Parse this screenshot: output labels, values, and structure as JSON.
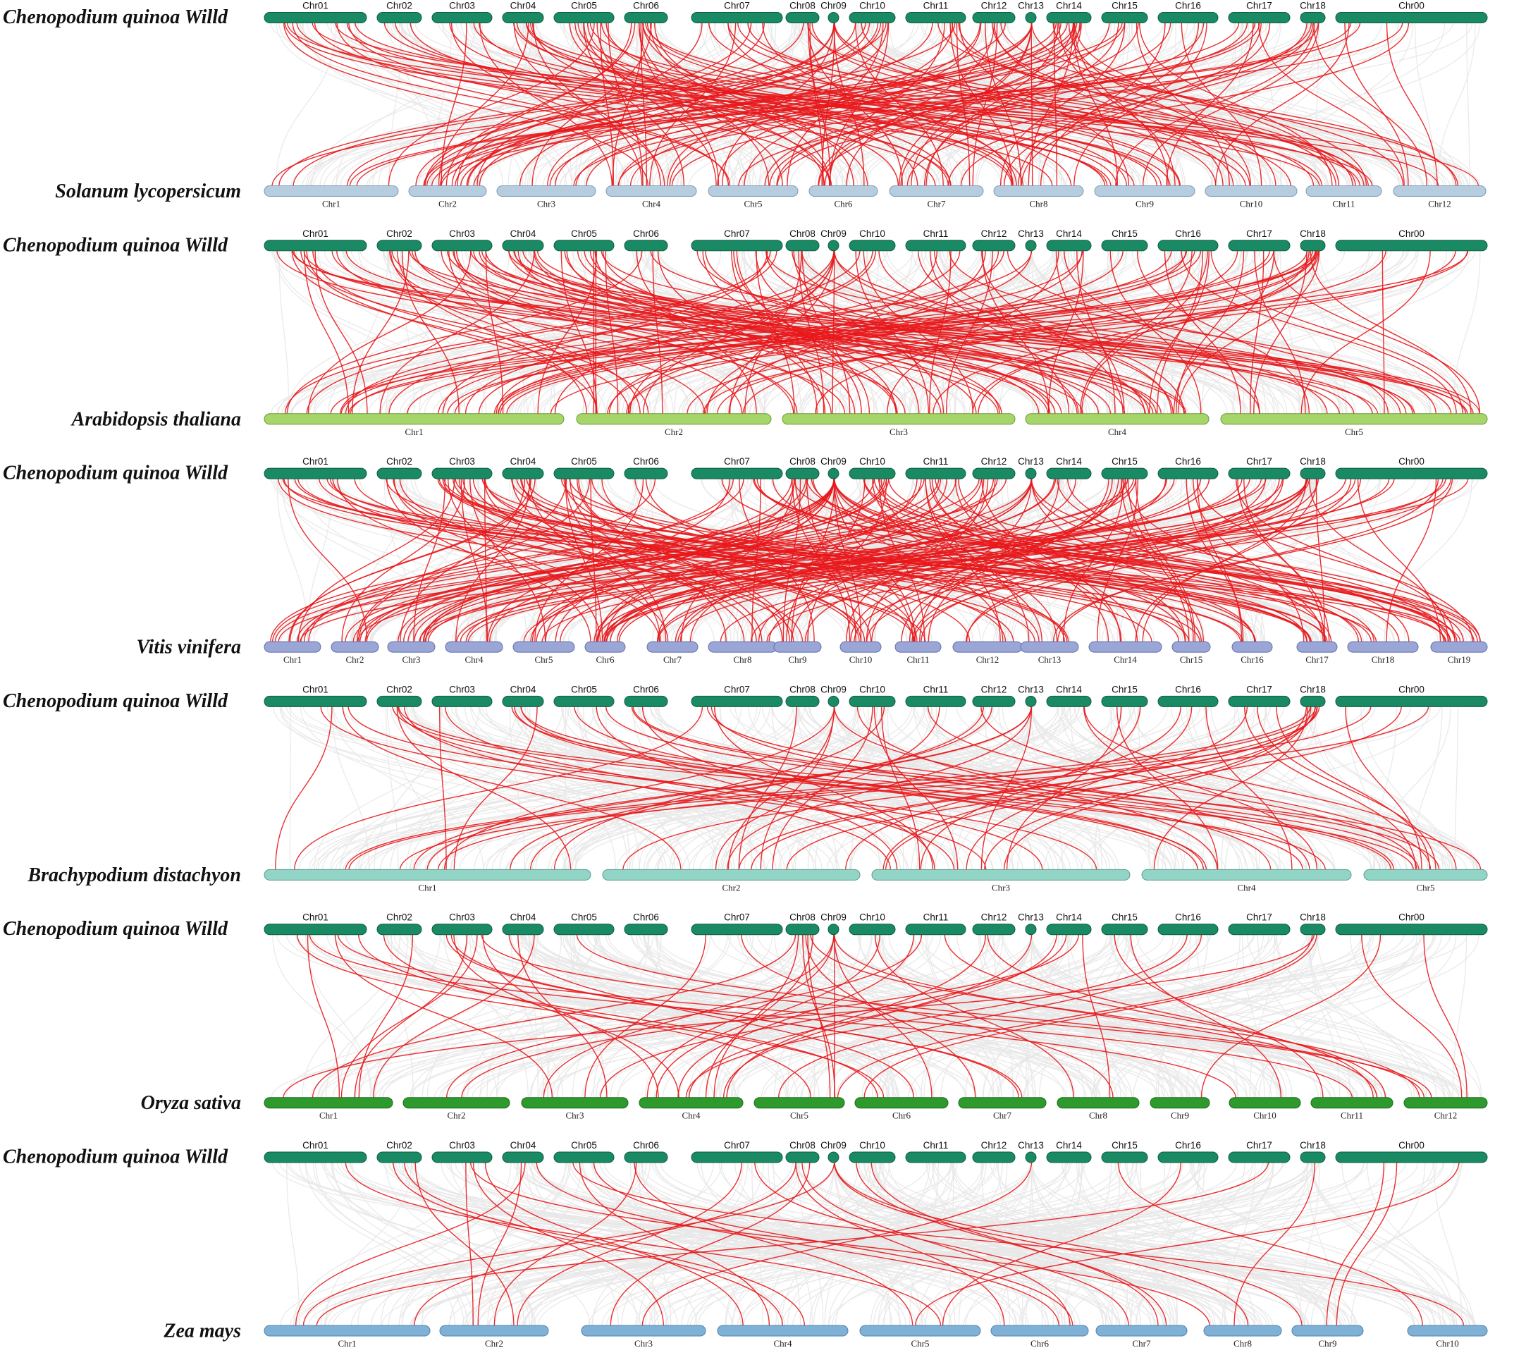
{
  "quinoa": {
    "name": "Chenopodium quinoa Willd",
    "color": "#1a8a64",
    "stroke": "#0e5c42",
    "chromosomes": [
      "Chr01",
      "Chr02",
      "Chr03",
      "Chr04",
      "Chr05",
      "Chr06",
      "Chr07",
      "Chr08",
      "Chr09",
      "Chr10",
      "Chr11",
      "Chr12",
      "Chr13",
      "Chr14",
      "Chr15",
      "Chr16",
      "Chr17",
      "Chr18",
      "Chr00"
    ]
  },
  "comparisons": [
    {
      "species": "Solanum lycopersicum",
      "color": "#b6cde0",
      "stroke": "#7d98b3",
      "chromosomes": [
        "Chr1",
        "Chr2",
        "Chr3",
        "Chr4",
        "Chr5",
        "Chr6",
        "Chr7",
        "Chr8",
        "Chr9",
        "Chr10",
        "Chr11",
        "Chr12"
      ],
      "link_density": "high"
    },
    {
      "species": "Arabidopsis thaliana",
      "color": "#a6d669",
      "stroke": "#6e9a3a",
      "chromosomes": [
        "Chr1",
        "Chr2",
        "Chr3",
        "Chr4",
        "Chr5"
      ],
      "link_density": "high"
    },
    {
      "species": "Vitis vinifera",
      "color": "#9aa6d6",
      "stroke": "#626fa8",
      "chromosomes": [
        "Chr1",
        "Chr2",
        "Chr3",
        "Chr4",
        "Chr5",
        "Chr6",
        "Chr7",
        "Chr8",
        "Chr9",
        "Chr10",
        "Chr11",
        "Chr12",
        "Chr13",
        "Chr14",
        "Chr15",
        "Chr16",
        "Chr17",
        "Chr18",
        "Chr19"
      ],
      "link_density": "high"
    },
    {
      "species": "Brachypodium distachyon",
      "color": "#92d4c6",
      "stroke": "#5a9e8f",
      "chromosomes": [
        "Chr1",
        "Chr2",
        "Chr3",
        "Chr4",
        "Chr5"
      ],
      "link_density": "medium"
    },
    {
      "species": "Oryza sativa",
      "color": "#2e9a2e",
      "stroke": "#1c6a1c",
      "chromosomes": [
        "Chr1",
        "Chr2",
        "Chr3",
        "Chr4",
        "Chr5",
        "Chr6",
        "Chr7",
        "Chr8",
        "Chr9",
        "Chr10",
        "Chr11",
        "Chr12"
      ],
      "link_density": "medium"
    },
    {
      "species": "Zea mays",
      "color": "#7fb0d6",
      "stroke": "#4f80a8",
      "chromosomes": [
        "Chr1",
        "Chr2",
        "Chr3",
        "Chr4",
        "Chr5",
        "Chr6",
        "Chr7",
        "Chr8",
        "Chr9",
        "Chr10"
      ],
      "link_density": "low"
    }
  ],
  "colors": {
    "collinear_link": "#e8e8e8",
    "highlight_link": "#e8171b"
  }
}
